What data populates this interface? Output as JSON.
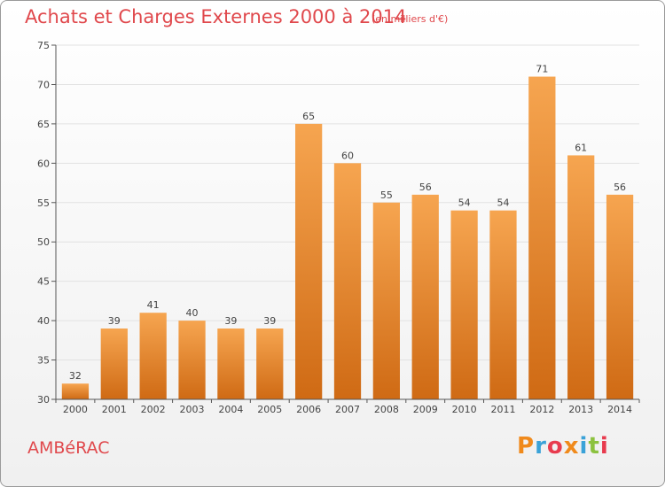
{
  "header": {
    "title": "Achats et Charges Externes 2000 à 2014",
    "subtitle": "(en milliers d'€)"
  },
  "footer": {
    "commune": "AMBéRAC",
    "logo": "Proxiti"
  },
  "colors": {
    "title": "#e0484c",
    "bar_top": "#f6a550",
    "bar_bottom": "#cf6a14",
    "grid": "#e2e2e2",
    "logo_letters": [
      "#f08a1c",
      "#3aa2d8",
      "#e83b4e",
      "#f08a1c",
      "#3aa2d8",
      "#8cc23f",
      "#e83b4e"
    ]
  },
  "chart_data": {
    "type": "bar",
    "categories": [
      "2000",
      "2001",
      "2002",
      "2003",
      "2004",
      "2005",
      "2006",
      "2007",
      "2008",
      "2009",
      "2010",
      "2011",
      "2012",
      "2013",
      "2014"
    ],
    "values": [
      32,
      39,
      41,
      40,
      39,
      39,
      65,
      60,
      55,
      56,
      54,
      54,
      71,
      61,
      56
    ],
    "ylim": [
      30,
      75
    ],
    "yticks": [
      30,
      35,
      40,
      45,
      50,
      55,
      60,
      65,
      70,
      75
    ],
    "grid": true,
    "legend": "none"
  }
}
